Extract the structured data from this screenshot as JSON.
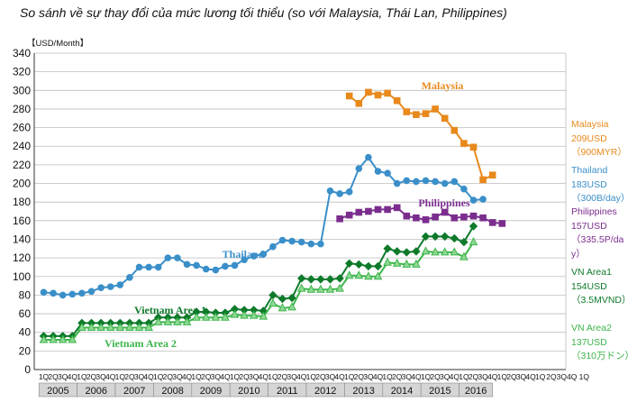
{
  "chart_data": {
    "type": "line",
    "title": "So sánh về sự thay đổi của mức lương tối thiểu (so với Malaysia, Thái Lan, Philippines)",
    "ylabel": "【USD/Month】",
    "ylim": [
      0,
      340
    ],
    "yticks": [
      0,
      20,
      40,
      60,
      80,
      100,
      120,
      140,
      160,
      180,
      200,
      220,
      240,
      260,
      280,
      300,
      320,
      340
    ],
    "grid": true,
    "quarter_labels": [
      "1Q",
      "2Q",
      "3Q",
      "4Q",
      "1Q",
      "2Q",
      "3Q",
      "4Q",
      "1Q",
      "2Q",
      "3Q",
      "4Q",
      "1Q",
      "2Q",
      "3Q",
      "4Q",
      "1Q",
      "2Q",
      "3Q",
      "4Q",
      "1Q",
      "2Q",
      "3Q",
      "4Q",
      "1Q",
      "2Q",
      "3Q",
      "4Q",
      "1Q",
      "2Q",
      "3Q",
      "4Q",
      "1Q",
      "2Q",
      "3Q",
      "4Q",
      "1Q",
      "2Q",
      "3Q",
      "4Q",
      "1Q",
      "2Q",
      "3Q",
      "4Q",
      "1Q",
      "2Q",
      "3Q",
      "4Q",
      "1Q",
      "2Q",
      "3Q",
      "4Q",
      "1Q"
    ],
    "years": [
      "2005",
      "2006",
      "2007",
      "2008",
      "2009",
      "2010",
      "2011",
      "2012",
      "2013",
      "2014",
      "2015",
      "2016"
    ],
    "series": [
      {
        "name": "Malaysia",
        "color": "#E8891C",
        "marker": "square",
        "start_index": 32,
        "label_text": "Malaysia",
        "values": [
          294,
          286,
          298,
          295,
          297,
          289,
          277,
          274,
          275,
          280,
          270,
          257,
          243,
          239,
          204,
          209
        ]
      },
      {
        "name": "Thailand",
        "color": "#3A8FC9",
        "marker": "circle",
        "start_index": 0,
        "label_text": "Thailand",
        "values": [
          83,
          82,
          80,
          81,
          82,
          84,
          88,
          89,
          91,
          99,
          110,
          110,
          110,
          120,
          120,
          113,
          112,
          108,
          107,
          111,
          112,
          118,
          122,
          124,
          132,
          139,
          138,
          137,
          135,
          135,
          192,
          189,
          191,
          216,
          228,
          213,
          211,
          200,
          203,
          202,
          203,
          202,
          200,
          202,
          194,
          182,
          183
        ]
      },
      {
        "name": "Philippines",
        "color": "#7B2D8E",
        "marker": "square",
        "start_index": 31,
        "label_text": "Philippines",
        "values": [
          162,
          166,
          169,
          170,
          172,
          172,
          174,
          165,
          163,
          161,
          164,
          169,
          163,
          164,
          165,
          163,
          158,
          157
        ]
      },
      {
        "name": "VN Area1",
        "color": "#0E7A2A",
        "marker": "diamond",
        "start_index": 0,
        "label_text": "Vietnam Area 1",
        "values": [
          36,
          36,
          36,
          36,
          50,
          50,
          50,
          50,
          50,
          50,
          50,
          50,
          56,
          56,
          56,
          56,
          62,
          62,
          61,
          61,
          65,
          64,
          64,
          63,
          80,
          76,
          77,
          98,
          97,
          97,
          97,
          98,
          114,
          113,
          111,
          111,
          130,
          127,
          126,
          127,
          143,
          143,
          143,
          141,
          137,
          154
        ]
      },
      {
        "name": "VN Area2",
        "color": "#3CB54A",
        "marker": "triangle",
        "start_index": 0,
        "label_text": "Vietnam Area 2",
        "values": [
          32,
          32,
          32,
          32,
          45,
          45,
          45,
          45,
          45,
          45,
          45,
          45,
          51,
          51,
          51,
          51,
          56,
          56,
          56,
          56,
          59,
          58,
          58,
          57,
          71,
          66,
          67,
          87,
          86,
          86,
          86,
          87,
          101,
          101,
          100,
          100,
          115,
          114,
          113,
          113,
          127,
          126,
          126,
          126,
          121,
          137
        ]
      }
    ],
    "side_labels": [
      {
        "name": "malaysia",
        "color": "#E8891C",
        "lines": [
          "Malaysia",
          "209USD",
          "（900MYR）"
        ]
      },
      {
        "name": "thailand",
        "color": "#3A8FC9",
        "lines": [
          "Thailand",
          "183USD",
          "（300B/day）"
        ]
      },
      {
        "name": "philippines",
        "color": "#7B2D8E",
        "lines": [
          "Philippines",
          "157USD",
          "（335.5P/da",
          "y）"
        ]
      },
      {
        "name": "vn-area1",
        "color": "#0E7A2A",
        "lines": [
          "VN Area1",
          "154USD",
          "（3.5MVND）"
        ]
      },
      {
        "name": "vn-area2",
        "color": "#3CB54A",
        "lines": [
          "VN Area2",
          "137USD",
          "（310万ドン）"
        ]
      }
    ],
    "trailing_axis_text": "2Q3Q4Q 1Q"
  }
}
